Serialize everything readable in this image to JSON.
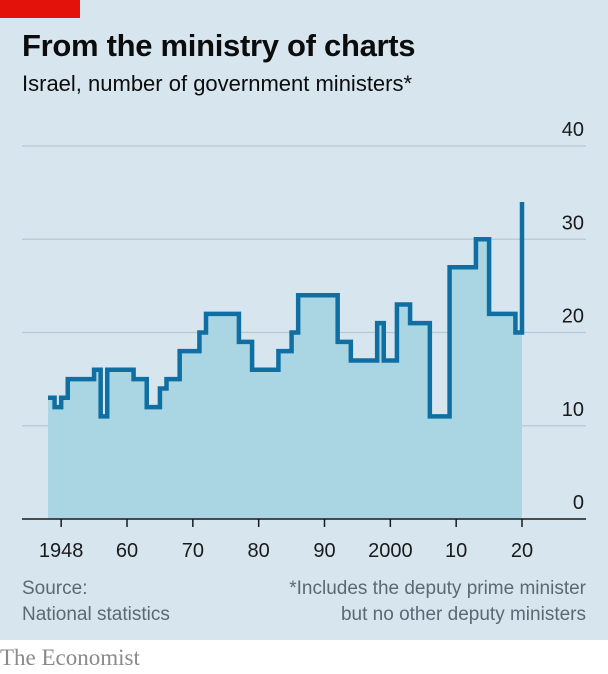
{
  "header": {
    "title": "From the ministry of charts",
    "subtitle": "Israel, number of government ministers*"
  },
  "footer": {
    "source_line1": "Source:",
    "source_line2": "National statistics",
    "note_line1": "*Includes the deputy prime minister",
    "note_line2": "but no other deputy ministers",
    "brand": "The Economist"
  },
  "colors": {
    "background": "#d7e5ee",
    "line": "#0f6fa3",
    "area": "#a9d6e2",
    "grid": "#b6c8d4",
    "accent": "#e3120b"
  },
  "chart_data": {
    "type": "area",
    "title": "From the ministry of charts",
    "subtitle": "Israel, number of government ministers*",
    "xlabel": "",
    "ylabel": "",
    "xlim": [
      1948,
      2020
    ],
    "ylim": [
      0,
      40
    ],
    "grid": true,
    "y_ticks": [
      0,
      10,
      20,
      30,
      40
    ],
    "y_tick_labels": [
      "0",
      "10",
      "20",
      "30",
      "40"
    ],
    "x_ticks": [
      1948,
      1960,
      1970,
      1980,
      1990,
      2000,
      2010,
      2020
    ],
    "x_tick_labels": [
      "1948",
      "60",
      "70",
      "80",
      "90",
      "2000",
      "10",
      "20"
    ],
    "step": "post",
    "series": [
      {
        "x": [
          1948,
          1949,
          1950,
          1951,
          1955,
          1956,
          1957,
          1961,
          1963,
          1965,
          1966,
          1968,
          1971,
          1972,
          1977,
          1979,
          1983,
          1985,
          1986,
          1992,
          1994,
          1998,
          1999,
          2001,
          2003,
          2006,
          2009,
          2013,
          2015,
          2019,
          2020
        ],
        "y": [
          13,
          12,
          13,
          15,
          16,
          11,
          16,
          15,
          12,
          14,
          15,
          18,
          20,
          22,
          19,
          16,
          18,
          20,
          24,
          19,
          17,
          21,
          17,
          23,
          21,
          11,
          27,
          30,
          22,
          20,
          34
        ]
      }
    ]
  }
}
